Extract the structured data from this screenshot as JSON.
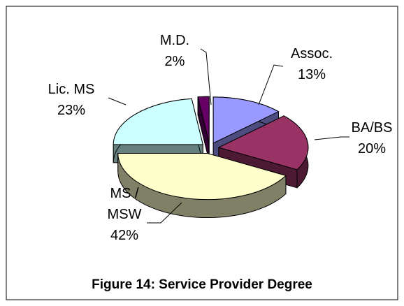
{
  "chart_data": {
    "type": "pie",
    "title": "Figure 14: Service Provider Degree",
    "categories": [
      "Assoc.",
      "BA/BS",
      "MS / MSW",
      "Lic. MS",
      "M.D."
    ],
    "values": [
      13,
      20,
      42,
      23,
      2
    ],
    "value_labels": [
      "13%",
      "20%",
      "42%",
      "23%",
      "2%"
    ],
    "colors": [
      "#9999ff",
      "#993366",
      "#ffffcc",
      "#ccffff",
      "#660066"
    ]
  }
}
